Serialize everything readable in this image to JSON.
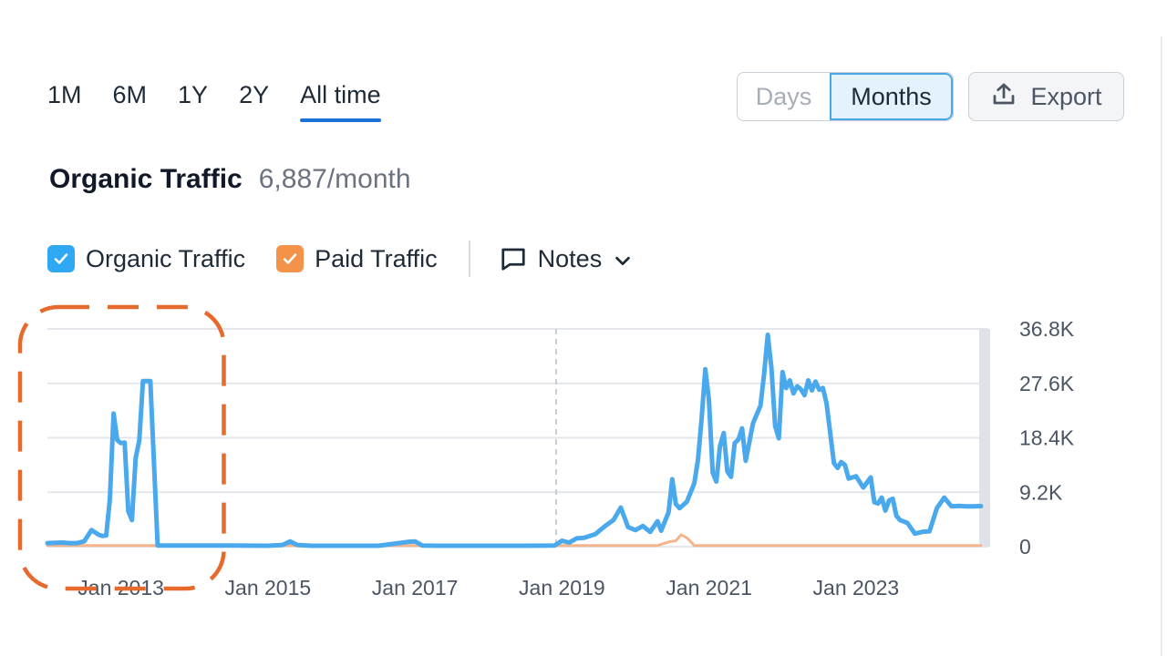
{
  "range_tabs": [
    {
      "label": "1M"
    },
    {
      "label": "6M"
    },
    {
      "label": "1Y"
    },
    {
      "label": "2Y"
    },
    {
      "label": "All time"
    }
  ],
  "active_range": "All time",
  "granularity": {
    "days_label": "Days",
    "months_label": "Months",
    "selected": "Months"
  },
  "export": {
    "label": "Export",
    "icon": "upload-icon"
  },
  "metric": {
    "title": "Organic Traffic",
    "value": "6,887/month"
  },
  "legend": [
    {
      "label": "Organic Traffic",
      "color": "#2ea8f2",
      "checked": true
    },
    {
      "label": "Paid Traffic",
      "color": "#f5924a",
      "checked": true
    }
  ],
  "notes": {
    "label": "Notes",
    "icon": "comment-icon"
  },
  "colors": {
    "organic": "#4aa8ec",
    "paid": "#f6b48a",
    "grid": "#e3e7ec",
    "highlight": "#e66a2c",
    "axis_text": "#4b5563"
  },
  "chart_data": {
    "type": "line",
    "x_tick_labels": [
      "Jan 2013",
      "Jan 2015",
      "Jan 2017",
      "Jan 2019",
      "Jan 2021",
      "Jan 2023"
    ],
    "y_tick_labels": [
      "36.8K",
      "27.6K",
      "18.4K",
      "9.2K",
      "0"
    ],
    "ylim": [
      0,
      36800
    ],
    "xlim": [
      2012.0,
      2024.8
    ],
    "grid": true,
    "y_axis_side": "right",
    "marker_line_x": 2018.92,
    "highlight_range": [
      2011.6,
      2014.4
    ],
    "series": [
      {
        "name": "Organic Traffic",
        "x": [
          2012.0,
          2012.2,
          2012.3,
          2012.4,
          2012.5,
          2012.6,
          2012.65,
          2012.7,
          2012.75,
          2012.8,
          2012.85,
          2012.9,
          2012.95,
          2013.0,
          2013.05,
          2013.1,
          2013.15,
          2013.2,
          2013.25,
          2013.3,
          2013.4,
          2013.5,
          2014.0,
          2014.5,
          2015.0,
          2015.2,
          2015.3,
          2015.4,
          2015.6,
          2016.0,
          2016.5,
          2016.9,
          2017.0,
          2017.1,
          2017.3,
          2017.6,
          2018.0,
          2018.5,
          2018.9,
          2019.0,
          2019.1,
          2019.2,
          2019.3,
          2019.45,
          2019.6,
          2019.7,
          2019.8,
          2019.9,
          2020.0,
          2020.1,
          2020.2,
          2020.3,
          2020.35,
          2020.45,
          2020.5,
          2020.55,
          2020.6,
          2020.7,
          2020.8,
          2020.85,
          2020.9,
          2020.95,
          2021.0,
          2021.05,
          2021.1,
          2021.15,
          2021.2,
          2021.25,
          2021.3,
          2021.35,
          2021.4,
          2021.45,
          2021.5,
          2021.6,
          2021.7,
          2021.75,
          2021.8,
          2021.85,
          2021.9,
          2021.95,
          2022.0,
          2022.05,
          2022.1,
          2022.15,
          2022.2,
          2022.25,
          2022.3,
          2022.35,
          2022.4,
          2022.45,
          2022.5,
          2022.55,
          2022.6,
          2022.7,
          2022.75,
          2022.8,
          2022.85,
          2022.9,
          2023.0,
          2023.1,
          2023.2,
          2023.25,
          2023.3,
          2023.35,
          2023.4,
          2023.45,
          2023.5,
          2023.55,
          2023.6,
          2023.7,
          2023.8,
          2023.9,
          2024.0,
          2024.1,
          2024.2,
          2024.3,
          2024.4,
          2024.5,
          2024.6,
          2024.7
        ],
        "y": [
          600,
          700,
          600,
          600,
          900,
          2800,
          2400,
          2000,
          1800,
          1900,
          8000,
          22500,
          18000,
          17500,
          17600,
          6000,
          4500,
          15000,
          18000,
          28000,
          28000,
          200,
          200,
          200,
          150,
          300,
          900,
          300,
          150,
          150,
          150,
          800,
          900,
          200,
          150,
          150,
          150,
          150,
          200,
          1000,
          700,
          1400,
          1500,
          2100,
          3600,
          4500,
          6600,
          3300,
          2800,
          3500,
          2500,
          4300,
          2700,
          5800,
          11400,
          7200,
          6500,
          7600,
          10700,
          14600,
          21700,
          30000,
          24800,
          12500,
          11000,
          17000,
          19200,
          12700,
          11800,
          17500,
          18100,
          20000,
          14500,
          20900,
          23800,
          29200,
          35800,
          30100,
          20400,
          18300,
          29500,
          26800,
          28100,
          25900,
          27100,
          26600,
          25600,
          28100,
          26400,
          27900,
          26500,
          26800,
          24200,
          14100,
          13300,
          14300,
          13800,
          11500,
          11900,
          10000,
          11700,
          7500,
          7300,
          8300,
          6100,
          7800,
          8100,
          5200,
          4500,
          4000,
          2200,
          2500,
          2600,
          6500,
          8300,
          6800,
          6900,
          6800,
          6800,
          6850
        ],
        "color": "#4aa8ec"
      },
      {
        "name": "Paid Traffic",
        "x": [
          2012.0,
          2019.0,
          2020.3,
          2020.45,
          2020.55,
          2020.62,
          2020.7,
          2020.8,
          2021.0,
          2024.7
        ],
        "y": [
          200,
          200,
          200,
          800,
          1000,
          2000,
          1500,
          200,
          200,
          200
        ],
        "color": "#f6b48a"
      }
    ]
  }
}
